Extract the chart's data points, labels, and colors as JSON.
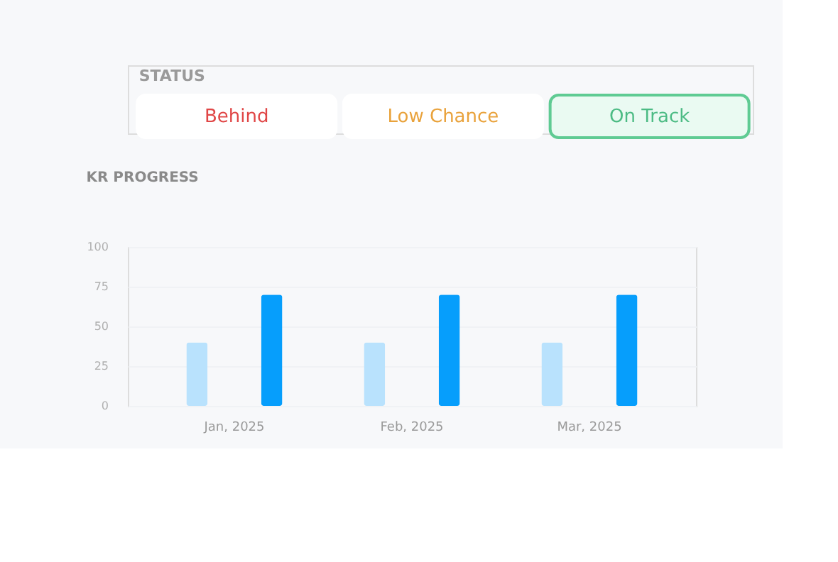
{
  "chart_data": {
    "type": "bar",
    "title": "KR PROGRESS",
    "annotations": [
      "STATUS",
      "Behind",
      "Low Chance",
      "On Track"
    ],
    "categories": [
      "Jan, 2025",
      "Feb, 2025",
      "Mar, 2025"
    ],
    "series": [
      {
        "color": "#b9e2fd",
        "values": [
          40,
          40,
          40
        ]
      },
      {
        "color": "#069efc",
        "values": [
          70,
          70,
          70
        ]
      }
    ],
    "ylim": [
      0,
      100
    ],
    "yticks": [
      0,
      25,
      50,
      75,
      100
    ],
    "grid": "y",
    "legend": false
  }
}
